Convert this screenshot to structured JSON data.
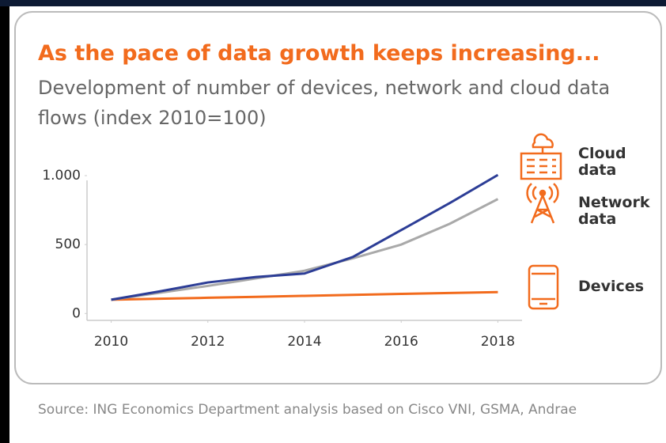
{
  "chart_data": {
    "type": "line",
    "title": "As the pace of data growth keeps increasing...",
    "subtitle": "Development of number of devices, network and cloud data flows (index 2010=100)",
    "source": "Source: ING Economics Department analysis based on Cisco VNI, GSMA, Andrae",
    "x": [
      2010,
      2011,
      2012,
      2013,
      2014,
      2015,
      2016,
      2017,
      2018
    ],
    "series": [
      {
        "name": "Cloud data",
        "color": "#2c3d96",
        "values": [
          100,
          160,
          225,
          265,
          290,
          410,
          605,
          800,
          1005
        ]
      },
      {
        "name": "Network data",
        "color": "#a9a9a9",
        "values": [
          100,
          150,
          200,
          255,
          310,
          400,
          500,
          650,
          830
        ]
      },
      {
        "name": "Devices",
        "color": "#f26b1d",
        "values": [
          100,
          107,
          114,
          121,
          128,
          135,
          142,
          149,
          155
        ]
      }
    ],
    "xlim": [
      2009.5,
      2018.5
    ],
    "xticks": [
      2010,
      2012,
      2014,
      2016,
      2018
    ],
    "ylim": [
      -50,
      1000
    ],
    "yticks": [
      0,
      500,
      {
        "value": 1000,
        "label": "1.000"
      }
    ],
    "grid": false
  }
}
